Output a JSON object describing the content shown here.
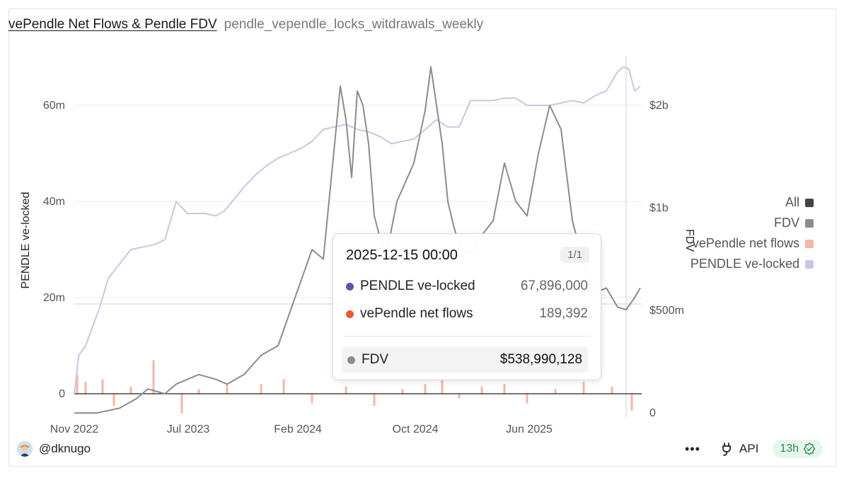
{
  "header": {
    "title": "vePendle Net Flows & Pendle FDV",
    "subtitle": "pendle_vependle_locks_witdrawals_weekly"
  },
  "chart_data": {
    "type": "line",
    "x_ticks": [
      "Nov 2022",
      "Jul 2023",
      "Feb 2024",
      "Oct 2024",
      "Jun 2025"
    ],
    "y_left": {
      "label": "PENDLE ve-locked",
      "ticks": [
        "0",
        "20m",
        "40m",
        "60m"
      ],
      "range": [
        -4000000,
        68000000
      ]
    },
    "y_right": {
      "label": "FDV",
      "ticks": [
        "0",
        "$500m",
        "$1b",
        "$2b"
      ]
    },
    "legend": {
      "placement": "right",
      "items": [
        {
          "label": "All",
          "color": "#444444"
        },
        {
          "label": "FDV",
          "color": "#8c8c8c"
        },
        {
          "label": "vePendle net flows",
          "color": "#f4b6a6"
        },
        {
          "label": "PENDLE ve-locked",
          "color": "#c9c7df"
        }
      ]
    },
    "series": [
      {
        "name": "PENDLE ve-locked",
        "axis": "left",
        "color": "#c9c7df",
        "x": [
          0,
          0.008,
          0.02,
          0.045,
          0.06,
          0.08,
          0.1,
          0.12,
          0.14,
          0.16,
          0.18,
          0.2,
          0.215,
          0.23,
          0.25,
          0.265,
          0.3,
          0.32,
          0.34,
          0.36,
          0.38,
          0.4,
          0.42,
          0.44,
          0.46,
          0.48,
          0.5,
          0.52,
          0.54,
          0.56,
          0.58,
          0.6,
          0.62,
          0.64,
          0.66,
          0.68,
          0.7,
          0.72,
          0.74,
          0.76,
          0.78,
          0.8,
          0.82,
          0.84,
          0.86,
          0.88,
          0.9,
          0.92,
          0.94,
          0.96,
          0.97,
          0.98,
          0.99,
          1.0
        ],
        "y": [
          0,
          8000000,
          10000000,
          18000000,
          24000000,
          27000000,
          30000000,
          30500000,
          31000000,
          32000000,
          40000000,
          37500000,
          37500000,
          37500000,
          37000000,
          38000000,
          43000000,
          45500000,
          47500000,
          49000000,
          50000000,
          51000000,
          52500000,
          55000000,
          55500000,
          56000000,
          55000000,
          54500000,
          53500000,
          52000000,
          52500000,
          53000000,
          55000000,
          57000000,
          55500000,
          55500000,
          61000000,
          61000000,
          61000000,
          61500000,
          61500000,
          60000000,
          60000000,
          60000000,
          60500000,
          61000000,
          60500000,
          62000000,
          63000000,
          67000000,
          68000000,
          67500000,
          63000000,
          64000000
        ]
      },
      {
        "name": "FDV",
        "axis": "left",
        "color": "#8c8c8c",
        "x": [
          0,
          0.04,
          0.08,
          0.11,
          0.13,
          0.16,
          0.18,
          0.2,
          0.22,
          0.25,
          0.27,
          0.3,
          0.33,
          0.36,
          0.39,
          0.42,
          0.44,
          0.455,
          0.47,
          0.48,
          0.49,
          0.5,
          0.51,
          0.52,
          0.53,
          0.55,
          0.57,
          0.6,
          0.62,
          0.63,
          0.64,
          0.65,
          0.66,
          0.67,
          0.68,
          0.7,
          0.72,
          0.74,
          0.76,
          0.78,
          0.8,
          0.82,
          0.84,
          0.86,
          0.88,
          0.9,
          0.92,
          0.94,
          0.96,
          0.975,
          0.99,
          1.0
        ],
        "y": [
          -4000000,
          -4000000,
          -3000000,
          -1000000,
          1000000,
          0,
          2000000,
          3000000,
          4000000,
          3000000,
          2000000,
          4000000,
          8000000,
          10000000,
          20000000,
          30000000,
          28000000,
          46000000,
          64000000,
          57000000,
          45000000,
          63000000,
          60000000,
          52000000,
          37000000,
          28000000,
          40000000,
          48000000,
          59000000,
          68000000,
          60000000,
          52000000,
          40000000,
          35000000,
          31000000,
          29000000,
          33000000,
          36000000,
          48000000,
          40000000,
          37000000,
          50000000,
          60000000,
          55000000,
          36000000,
          27000000,
          21000000,
          22000000,
          18000000,
          17500000,
          20000000,
          22000000
        ]
      },
      {
        "name": "vePendle net flows",
        "axis": "left",
        "color": "#f4b6a6",
        "type": "bar",
        "x": [
          0.005,
          0.02,
          0.05,
          0.07,
          0.1,
          0.14,
          0.19,
          0.22,
          0.27,
          0.33,
          0.37,
          0.42,
          0.48,
          0.53,
          0.58,
          0.62,
          0.65,
          0.68,
          0.72,
          0.76,
          0.8,
          0.85,
          0.9,
          0.95,
          0.985
        ],
        "y": [
          4000000,
          2500000,
          3000000,
          -2500000,
          1500000,
          7000000,
          -4000000,
          1000000,
          2000000,
          2000000,
          3000000,
          -2000000,
          1500000,
          -2500000,
          1000000,
          2000000,
          3000000,
          -1000000,
          1500000,
          2000000,
          -2000000,
          1000000,
          2500000,
          1500000,
          -3500000
        ]
      }
    ]
  },
  "tooltip": {
    "date": "2025-12-15 00:00",
    "page": "1/1",
    "rows": [
      {
        "label": "PENDLE ve-locked",
        "value": "67,896,000",
        "color": "#5b55a3"
      },
      {
        "label": "vePendle net flows",
        "value": "189,392",
        "color": "#e85b3a"
      }
    ],
    "fdv": {
      "label": "FDV",
      "value": "$538,990,128",
      "color": "#8c8c8c"
    }
  },
  "footer": {
    "user": "@dknugo",
    "more": "•••",
    "api_label": "API",
    "badge": "13h"
  }
}
